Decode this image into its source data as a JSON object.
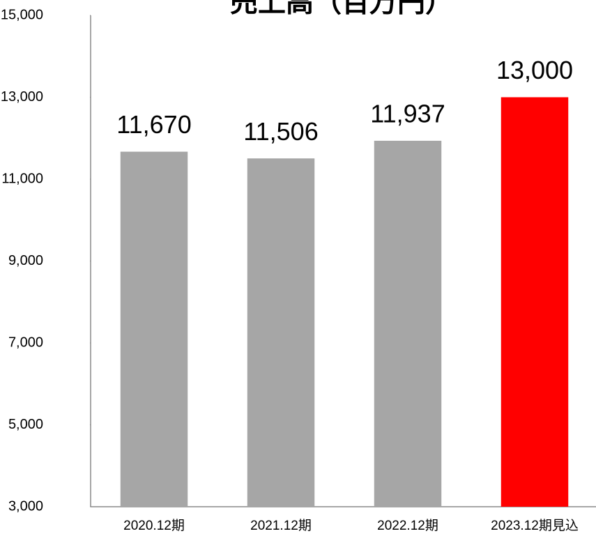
{
  "chart_data": {
    "type": "bar",
    "title": "売上高（百万円）",
    "categories": [
      "2020.12期",
      "2021.12期",
      "2022.12期",
      "2023.12期見込"
    ],
    "values": [
      11670,
      11506,
      11937,
      13000
    ],
    "value_labels": [
      "11,670",
      "11,506",
      "11,937",
      "13,000"
    ],
    "colors": [
      "#a6a6a6",
      "#a6a6a6",
      "#a6a6a6",
      "#ff0000"
    ],
    "ylim": [
      3000,
      15000
    ],
    "yticks": [
      {
        "value": 3000,
        "label": "3,000"
      },
      {
        "value": 5000,
        "label": "5,000"
      },
      {
        "value": 7000,
        "label": "7,000"
      },
      {
        "value": 9000,
        "label": "9,000"
      },
      {
        "value": 11000,
        "label": "11,000"
      },
      {
        "value": 13000,
        "label": "13,000"
      },
      {
        "value": 15000,
        "label": "15,000"
      }
    ]
  }
}
